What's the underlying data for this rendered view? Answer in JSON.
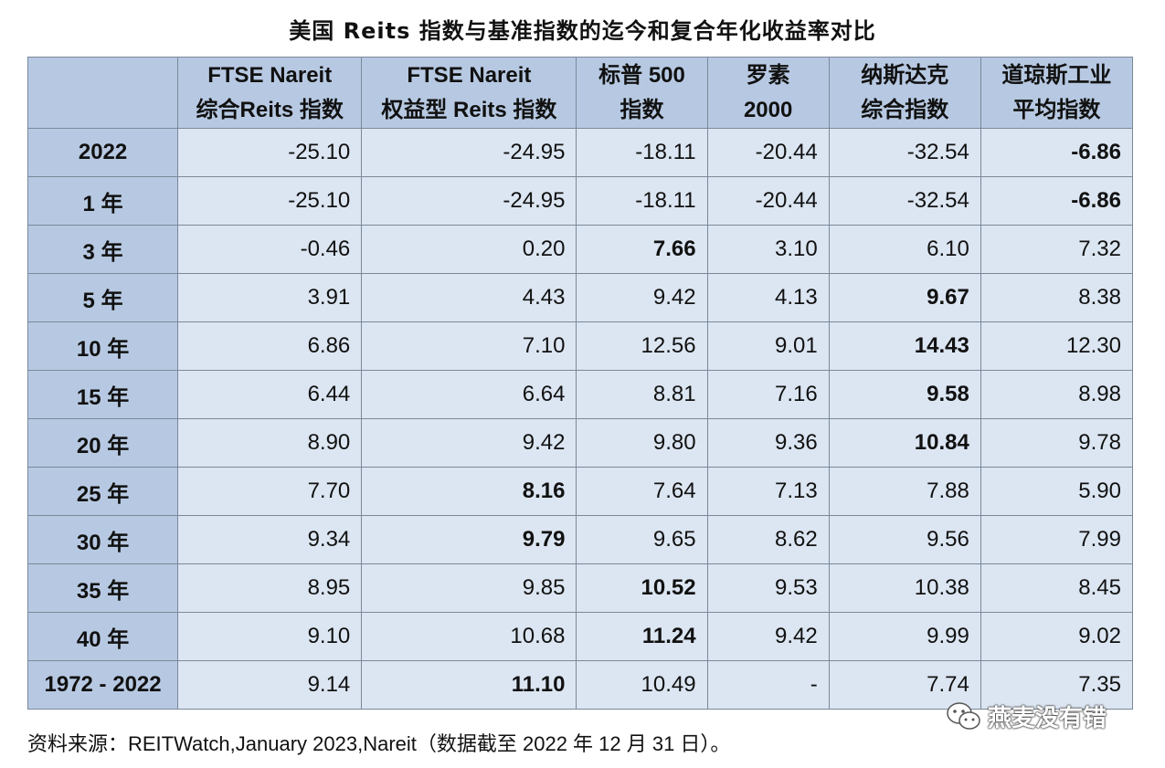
{
  "chart_data": {
    "type": "table",
    "title": "美国 Reits 指数与基准指数的迄今和复合年化收益率对比",
    "columns": [
      {
        "id": "ftse_all",
        "lines": [
          "FTSE Nareit",
          "综合Reits 指数"
        ]
      },
      {
        "id": "ftse_equity",
        "lines": [
          "FTSE Nareit",
          "权益型 Reits 指数"
        ]
      },
      {
        "id": "sp500",
        "lines": [
          "标普 500",
          "指数"
        ]
      },
      {
        "id": "russell2000",
        "lines": [
          "罗素",
          "2000"
        ]
      },
      {
        "id": "nasdaq",
        "lines": [
          "纳斯达克",
          "综合指数"
        ]
      },
      {
        "id": "dow",
        "lines": [
          "道琼斯工业",
          "平均指数"
        ]
      }
    ],
    "rows": [
      {
        "label": "2022",
        "values": [
          "-25.10",
          "-24.95",
          "-18.11",
          "-20.44",
          "-32.54",
          "-6.86"
        ],
        "bold": [
          5
        ]
      },
      {
        "label": "1 年",
        "values": [
          "-25.10",
          "-24.95",
          "-18.11",
          "-20.44",
          "-32.54",
          "-6.86"
        ],
        "bold": [
          5
        ]
      },
      {
        "label": "3 年",
        "values": [
          "-0.46",
          "0.20",
          "7.66",
          "3.10",
          "6.10",
          "7.32"
        ],
        "bold": [
          2
        ]
      },
      {
        "label": "5 年",
        "values": [
          "3.91",
          "4.43",
          "9.42",
          "4.13",
          "9.67",
          "8.38"
        ],
        "bold": [
          4
        ]
      },
      {
        "label": "10 年",
        "values": [
          "6.86",
          "7.10",
          "12.56",
          "9.01",
          "14.43",
          "12.30"
        ],
        "bold": [
          4
        ]
      },
      {
        "label": "15 年",
        "values": [
          "6.44",
          "6.64",
          "8.81",
          "7.16",
          "9.58",
          "8.98"
        ],
        "bold": [
          4
        ]
      },
      {
        "label": "20 年",
        "values": [
          "8.90",
          "9.42",
          "9.80",
          "9.36",
          "10.84",
          "9.78"
        ],
        "bold": [
          4
        ]
      },
      {
        "label": "25 年",
        "values": [
          "7.70",
          "8.16",
          "7.64",
          "7.13",
          "7.88",
          "5.90"
        ],
        "bold": [
          1
        ]
      },
      {
        "label": "30 年",
        "values": [
          "9.34",
          "9.79",
          "9.65",
          "8.62",
          "9.56",
          "7.99"
        ],
        "bold": [
          1
        ]
      },
      {
        "label": "35 年",
        "values": [
          "8.95",
          "9.85",
          "10.52",
          "9.53",
          "10.38",
          "8.45"
        ],
        "bold": [
          2
        ]
      },
      {
        "label": "40 年",
        "values": [
          "9.10",
          "10.68",
          "11.24",
          "9.42",
          "9.99",
          "9.02"
        ],
        "bold": [
          2
        ]
      },
      {
        "label": "1972 - 2022",
        "values": [
          "9.14",
          "11.10",
          "10.49",
          "-",
          "7.74",
          "7.35"
        ],
        "bold": [
          1
        ]
      }
    ],
    "source": "资料来源：REITWatch,January 2023,Nareit（数据截至 2022 年 12 月 31 日）。",
    "colors": {
      "header_bg": "#b7c9e2",
      "cell_bg": "#dce6f2",
      "border": "#7a8899"
    }
  },
  "watermark": {
    "text": "燕麦没有错",
    "icon": "wechat-logo-icon"
  }
}
